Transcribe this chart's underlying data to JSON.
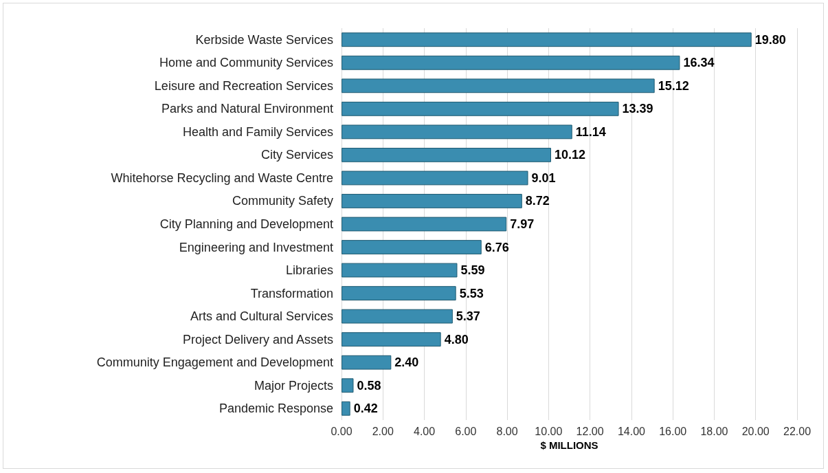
{
  "chart_data": {
    "type": "bar",
    "orientation": "horizontal",
    "xlabel": "$ MILLIONS",
    "categories": [
      "Kerbside Waste Services",
      "Home and Community Services",
      "Leisure and Recreation Services",
      "Parks and Natural Environment",
      "Health and Family Services",
      "City Services",
      "Whitehorse Recycling and Waste Centre",
      "Community Safety",
      "City Planning and Development",
      "Engineering and Investment",
      "Libraries",
      "Transformation",
      "Arts and Cultural Services",
      "Project Delivery and Assets",
      "Community Engagement and Development",
      "Major Projects",
      "Pandemic Response"
    ],
    "values": [
      19.8,
      16.34,
      15.12,
      13.39,
      11.14,
      10.12,
      9.01,
      8.72,
      7.97,
      6.76,
      5.59,
      5.53,
      5.37,
      4.8,
      2.4,
      0.58,
      0.42
    ],
    "value_labels": [
      "19.80",
      "16.34",
      "15.12",
      "13.39",
      "11.14",
      "10.12",
      "9.01",
      "8.72",
      "7.97",
      "6.76",
      "5.59",
      "5.53",
      "5.37",
      "4.80",
      "2.40",
      "0.58",
      "0.42"
    ],
    "color": "#3a8db0",
    "xlim": [
      0,
      22
    ],
    "xticks": [
      {
        "value": 0,
        "label": "0.00"
      },
      {
        "value": 2,
        "label": "2.00"
      },
      {
        "value": 4,
        "label": "4.00"
      },
      {
        "value": 6,
        "label": "6.00"
      },
      {
        "value": 8,
        "label": "8.00"
      },
      {
        "value": 10,
        "label": "10.00"
      },
      {
        "value": 12,
        "label": "12.00"
      },
      {
        "value": 14,
        "label": "14.00"
      },
      {
        "value": 16,
        "label": "16.00"
      },
      {
        "value": 18,
        "label": "18.00"
      },
      {
        "value": 20,
        "label": "20.00"
      },
      {
        "value": 22,
        "label": "22.00"
      }
    ],
    "grid": "x"
  }
}
